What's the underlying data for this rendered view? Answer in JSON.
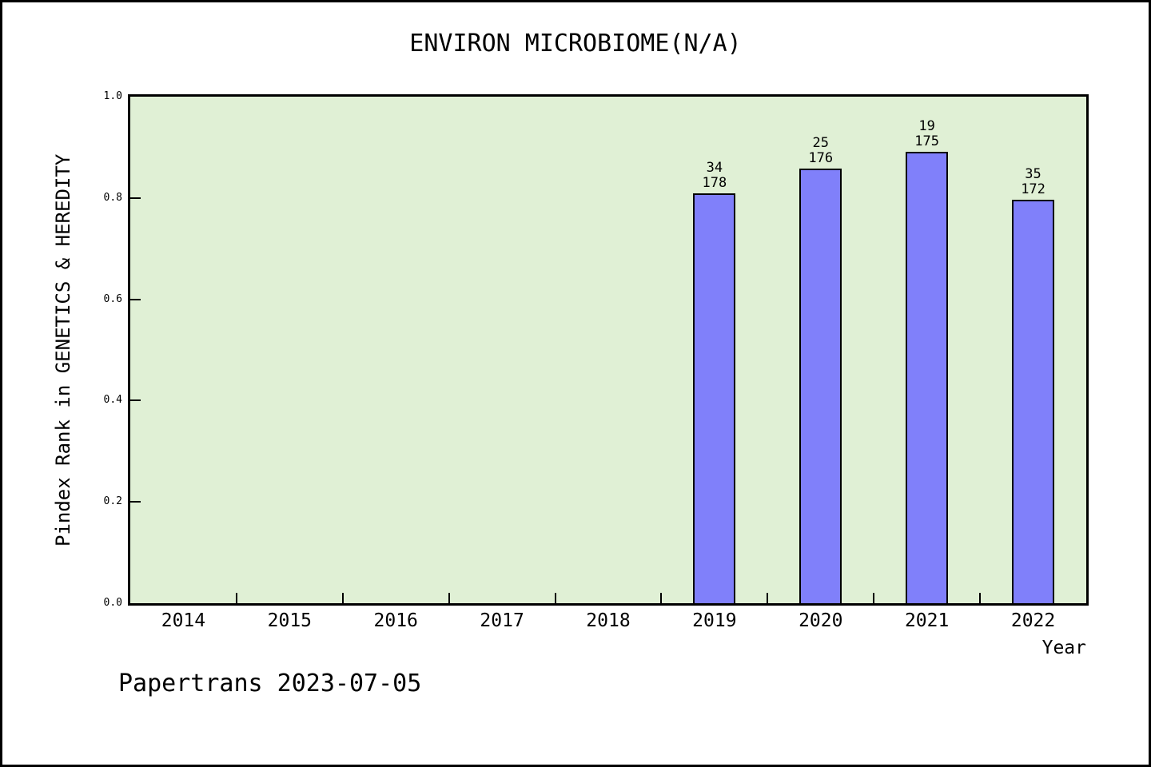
{
  "chart_data": {
    "type": "bar",
    "title": "ENVIRON MICROBIOME(N/A)",
    "xlabel": "Year",
    "ylabel": "Pindex Rank in GENETICS & HEREDITY",
    "ylim": [
      0.0,
      1.0
    ],
    "yticks": [
      0.0,
      0.2,
      0.4,
      0.6,
      0.8,
      1.0
    ],
    "categories": [
      2014,
      2015,
      2016,
      2017,
      2018,
      2019,
      2020,
      2021,
      2022
    ],
    "series": [
      {
        "name": "Pindex Rank",
        "values": [
          null,
          null,
          null,
          null,
          null,
          0.809,
          0.858,
          0.891,
          0.797
        ]
      }
    ],
    "bars": [
      {
        "year": 2019,
        "rank": 34,
        "total": 178,
        "value": 0.809
      },
      {
        "year": 2020,
        "rank": 25,
        "total": 176,
        "value": 0.858
      },
      {
        "year": 2021,
        "rank": 19,
        "total": 175,
        "value": 0.891
      },
      {
        "year": 2022,
        "rank": 35,
        "total": 172,
        "value": 0.797
      }
    ],
    "bar_color": "#8080fa",
    "bar_border_color": "#000000",
    "plot_bg": "#e0f0d5",
    "grid": false,
    "legend": "none",
    "footnote": "Papertrans 2023-07-05"
  }
}
